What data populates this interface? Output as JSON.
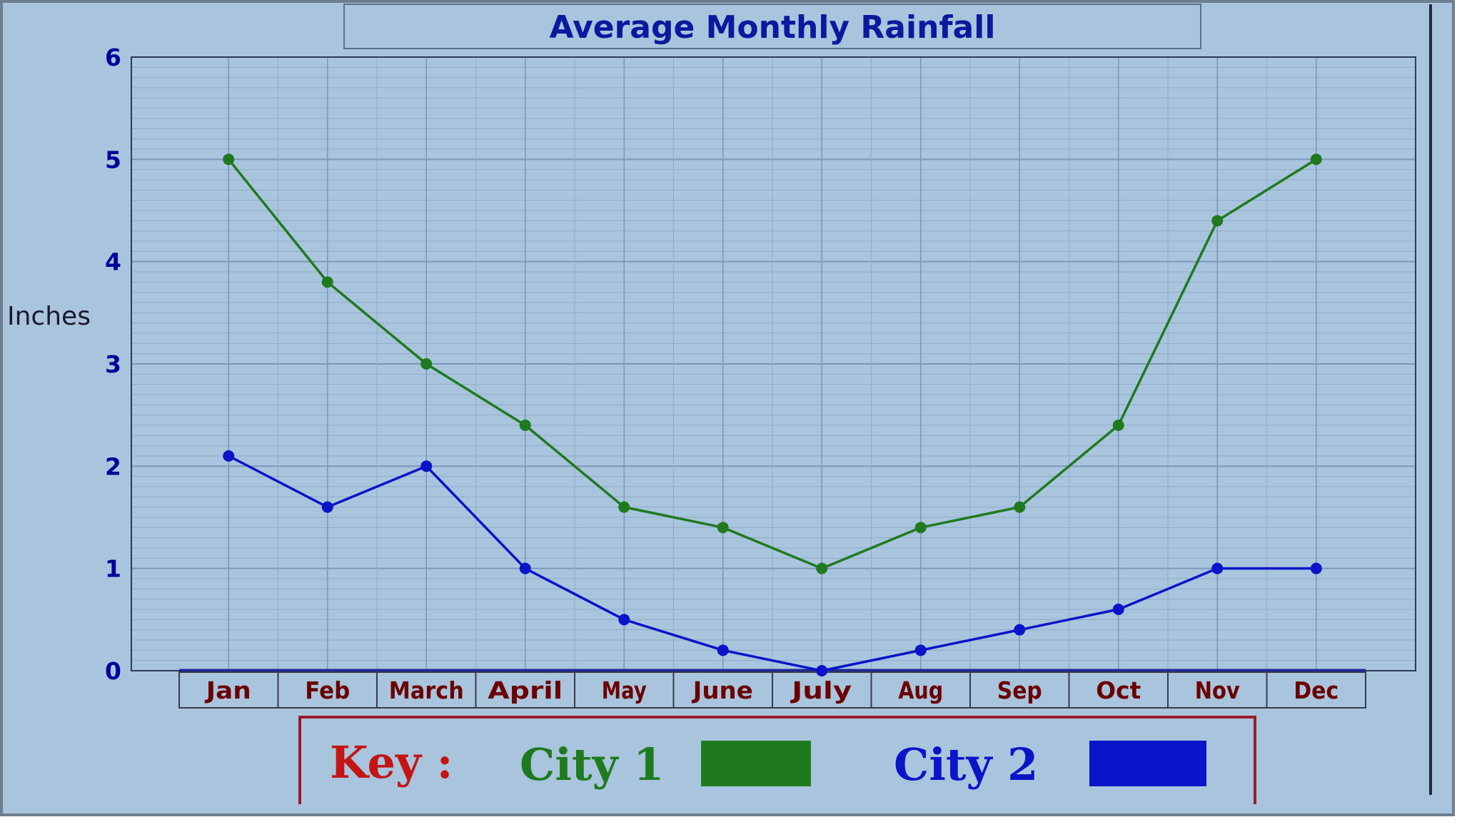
{
  "chart_data": {
    "type": "line",
    "title": "Average Monthly Rainfall",
    "ylabel": "Inches",
    "xlabel": "",
    "categories": [
      "Jan",
      "Feb",
      "March",
      "April",
      "May",
      "June",
      "July",
      "Aug",
      "Sep",
      "Oct",
      "Nov",
      "Dec"
    ],
    "ylim": [
      0,
      6
    ],
    "y_ticks": [
      "0",
      "1",
      "2",
      "3",
      "4",
      "5",
      "6"
    ],
    "grid": true,
    "series": [
      {
        "name": "City 1",
        "color": "#1f7a1f",
        "values": [
          5.0,
          3.8,
          3.0,
          2.4,
          1.6,
          1.4,
          1.0,
          1.4,
          1.6,
          2.4,
          4.4,
          5.0
        ]
      },
      {
        "name": "City 2",
        "color": "#0a14c8",
        "values": [
          2.1,
          1.6,
          2.0,
          1.0,
          0.5,
          0.2,
          0.0,
          0.2,
          0.4,
          0.6,
          1.0,
          1.0
        ]
      }
    ],
    "legend": {
      "placement": "bottom",
      "title": "Key :",
      "title_color": "#c41515"
    }
  },
  "colors": {
    "background": "#a9c5dd",
    "frame": "#6b7f90",
    "grid_major": "#7f96b8",
    "grid_minor": "#93a9c8",
    "axis_tick_text": "#00009a",
    "month_text": "#6b0000",
    "legend_border": "#9b1a2a"
  }
}
